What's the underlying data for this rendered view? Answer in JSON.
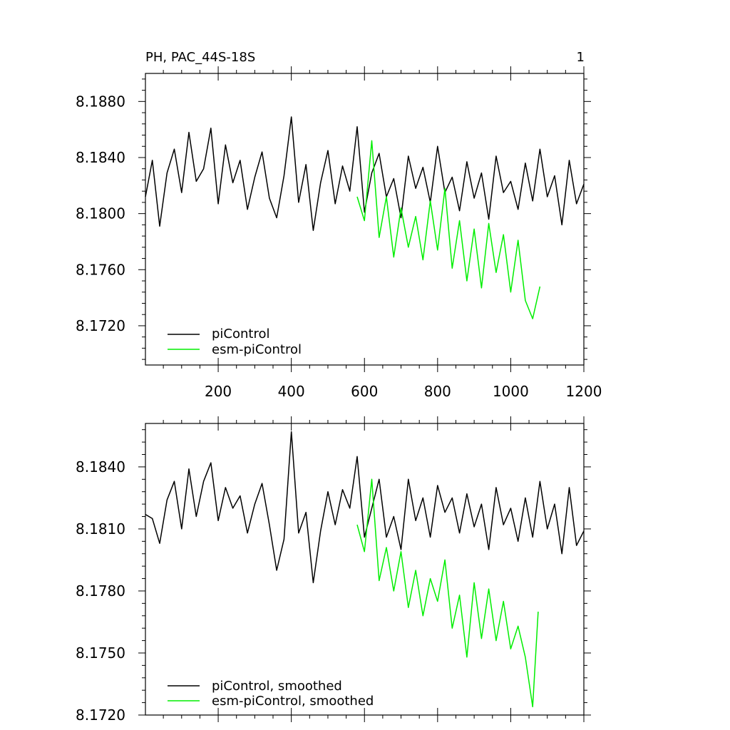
{
  "chart_data": [
    {
      "type": "line",
      "title": "PH, PAC_44S-18S",
      "corner_label": "1",
      "xlabel": "",
      "ylabel": "",
      "xlim": [
        1,
        1200
      ],
      "ylim": [
        8.1692,
        8.19
      ],
      "x_ticks": [
        200,
        400,
        600,
        800,
        1000,
        1200
      ],
      "x_tick_labels": [
        "200",
        "400",
        "600",
        "800",
        "1000",
        "1200"
      ],
      "y_ticks": [
        8.172,
        8.176,
        8.18,
        8.184,
        8.188
      ],
      "y_tick_labels": [
        "8.1720",
        "8.1760",
        "8.1800",
        "8.1840",
        "8.1880"
      ],
      "legend_position": "bottom-left",
      "series": [
        {
          "name": "piControl",
          "color": "#000000",
          "x": [
            1,
            20,
            40,
            60,
            80,
            100,
            120,
            140,
            160,
            180,
            200,
            220,
            240,
            260,
            280,
            300,
            320,
            340,
            360,
            380,
            400,
            420,
            440,
            460,
            480,
            500,
            520,
            540,
            560,
            580,
            600,
            620,
            640,
            660,
            680,
            700,
            720,
            740,
            760,
            780,
            800,
            820,
            840,
            860,
            880,
            900,
            920,
            940,
            960,
            980,
            1000,
            1020,
            1040,
            1060,
            1080,
            1100,
            1120,
            1140,
            1160,
            1180,
            1200
          ],
          "values": [
            8.1812,
            8.1838,
            8.1791,
            8.1829,
            8.1846,
            8.1815,
            8.1858,
            8.1823,
            8.1832,
            8.1861,
            8.1807,
            8.1849,
            8.1822,
            8.1838,
            8.1803,
            8.1826,
            8.1844,
            8.1811,
            8.1797,
            8.1827,
            8.1869,
            8.1808,
            8.1835,
            8.1788,
            8.1822,
            8.1845,
            8.1807,
            8.1834,
            8.1816,
            8.1862,
            8.1801,
            8.1829,
            8.1843,
            8.1812,
            8.1825,
            8.1797,
            8.1841,
            8.1818,
            8.1833,
            8.1808,
            8.1848,
            8.1815,
            8.1826,
            8.1802,
            8.1837,
            8.1811,
            8.1829,
            8.1796,
            8.1841,
            8.1815,
            8.1823,
            8.1803,
            8.1836,
            8.1809,
            8.1846,
            8.1812,
            8.1827,
            8.1792,
            8.1838,
            8.1807,
            8.1821
          ]
        },
        {
          "name": "esm-piControl",
          "color": "#00ee00",
          "x": [
            580,
            600,
            620,
            640,
            660,
            680,
            700,
            720,
            740,
            760,
            780,
            800,
            820,
            840,
            860,
            880,
            900,
            920,
            940,
            960,
            980,
            1000,
            1020,
            1040,
            1060,
            1080
          ],
          "values": [
            8.1812,
            8.1795,
            8.1852,
            8.1783,
            8.1812,
            8.1769,
            8.1804,
            8.1776,
            8.1798,
            8.1767,
            8.1809,
            8.1774,
            8.1818,
            8.1761,
            8.1795,
            8.1752,
            8.1789,
            8.1747,
            8.1793,
            8.1758,
            8.1785,
            8.1744,
            8.1781,
            8.1738,
            8.1725,
            8.1748
          ]
        }
      ]
    },
    {
      "type": "line",
      "title": "",
      "xlabel": "",
      "ylabel": "",
      "xlim": [
        1,
        1200
      ],
      "ylim": [
        8.172,
        8.1861
      ],
      "x_ticks": [
        200,
        400,
        600,
        800,
        1000,
        1200
      ],
      "y_ticks": [
        8.172,
        8.175,
        8.178,
        8.181,
        8.184
      ],
      "y_tick_labels": [
        "8.1720",
        "8.1750",
        "8.1780",
        "8.1810",
        "8.1840"
      ],
      "legend_position": "bottom-left",
      "series": [
        {
          "name": "piControl, smoothed",
          "color": "#000000",
          "x": [
            1,
            20,
            40,
            60,
            80,
            100,
            120,
            140,
            160,
            180,
            200,
            220,
            240,
            260,
            280,
            300,
            320,
            340,
            360,
            380,
            400,
            420,
            440,
            460,
            480,
            500,
            520,
            540,
            560,
            580,
            600,
            620,
            640,
            660,
            680,
            700,
            720,
            740,
            760,
            780,
            800,
            820,
            840,
            860,
            880,
            900,
            920,
            940,
            960,
            980,
            1000,
            1020,
            1040,
            1060,
            1080,
            1100,
            1120,
            1140,
            1160,
            1180,
            1200
          ],
          "values": [
            8.1817,
            8.1815,
            8.1803,
            8.1824,
            8.1833,
            8.181,
            8.1839,
            8.1816,
            8.1833,
            8.1842,
            8.1814,
            8.183,
            8.182,
            8.1826,
            8.1808,
            8.1822,
            8.1832,
            8.1812,
            8.179,
            8.1805,
            8.1857,
            8.1808,
            8.1818,
            8.1784,
            8.1809,
            8.1828,
            8.1812,
            8.1829,
            8.182,
            8.1845,
            8.1806,
            8.182,
            8.1834,
            8.1806,
            8.1816,
            8.18,
            8.1834,
            8.1814,
            8.1825,
            8.1806,
            8.1831,
            8.1818,
            8.1825,
            8.1808,
            8.1827,
            8.1811,
            8.1822,
            8.18,
            8.183,
            8.1812,
            8.182,
            8.1804,
            8.1825,
            8.1806,
            8.1833,
            8.181,
            8.1822,
            8.1798,
            8.183,
            8.1802,
            8.1809
          ]
        },
        {
          "name": "esm-piControl, smoothed",
          "color": "#00ee00",
          "x": [
            580,
            600,
            620,
            640,
            660,
            680,
            700,
            720,
            740,
            760,
            780,
            800,
            820,
            840,
            860,
            880,
            900,
            920,
            940,
            960,
            980,
            1000,
            1020,
            1040,
            1060,
            1075
          ],
          "values": [
            8.1812,
            8.1799,
            8.1834,
            8.1785,
            8.1801,
            8.178,
            8.1799,
            8.1772,
            8.179,
            8.1768,
            8.1786,
            8.1775,
            8.1795,
            8.1762,
            8.1778,
            8.1748,
            8.1784,
            8.1757,
            8.1781,
            8.1756,
            8.1775,
            8.1752,
            8.1763,
            8.1748,
            8.1724,
            8.177
          ]
        }
      ]
    }
  ]
}
